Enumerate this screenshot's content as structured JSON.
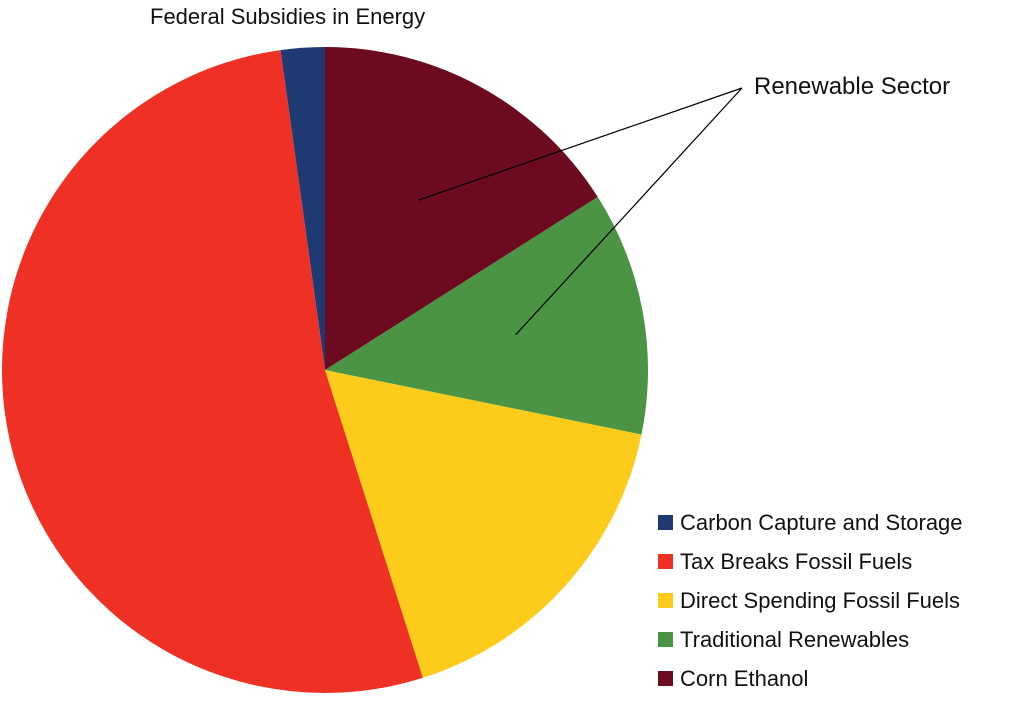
{
  "chart_data": {
    "type": "pie",
    "title": "Federal Subsidies in Energy",
    "slices": [
      {
        "label": "Carbon Capture and Storage",
        "value": 2.2,
        "color": "#1F3A73"
      },
      {
        "label": "Tax Breaks Fossil Fuels",
        "value": 52.7,
        "color": "#EE3124"
      },
      {
        "label": "Direct Spending Fossil Fuels",
        "value": 16.9,
        "color": "#FDCC1B"
      },
      {
        "label": "Traditional Renewables",
        "value": 12.2,
        "color": "#4A9444"
      },
      {
        "label": "Corn Ethanol",
        "value": 16.0,
        "color": "#6C0A1F"
      }
    ],
    "slice_order": "counterclockwise from top",
    "legend_position": "bottom-right",
    "annotations": [
      {
        "text": "Renewable Sector",
        "points_to": [
          "Corn Ethanol",
          "Traditional Renewables"
        ]
      }
    ]
  }
}
